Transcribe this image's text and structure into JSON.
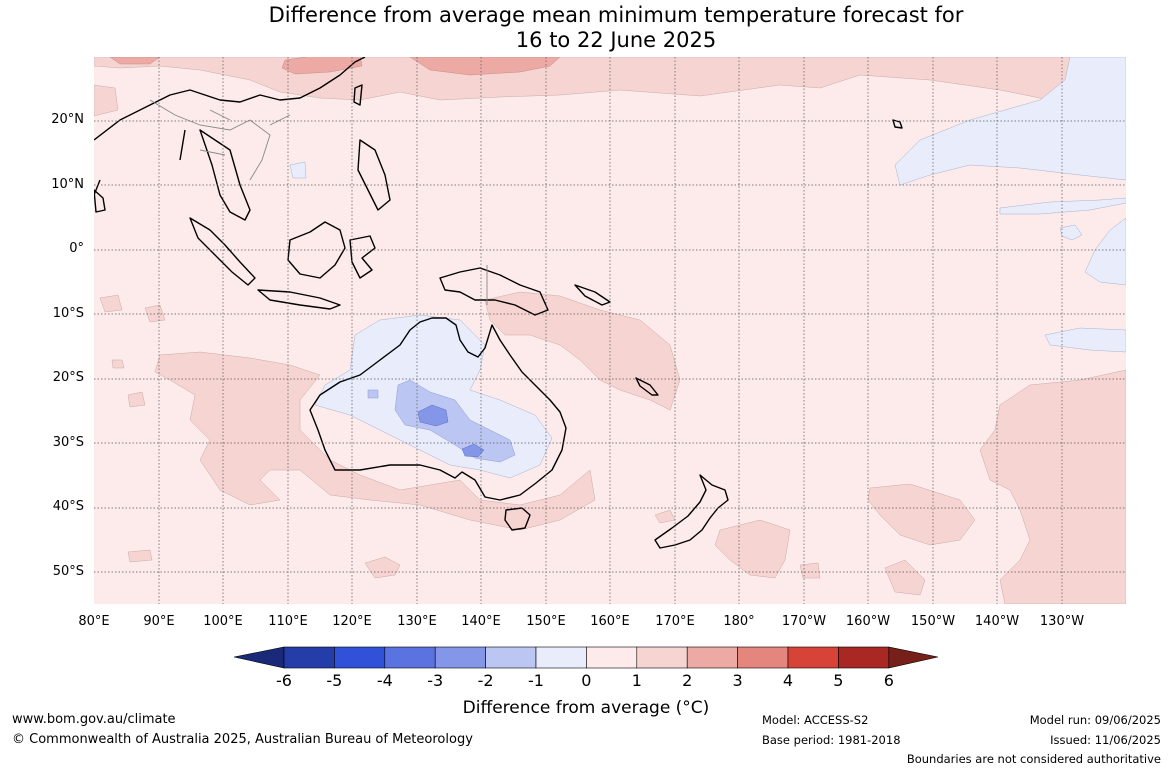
{
  "title_line1": "Difference from average mean minimum temperature forecast for",
  "title_line2": "16 to 22 June 2025",
  "lat_labels": [
    "20°N",
    "10°N",
    "0°",
    "10°S",
    "20°S",
    "30°S",
    "40°S",
    "50°S"
  ],
  "lon_labels": [
    "80°E",
    "90°E",
    "100°E",
    "110°E",
    "120°E",
    "130°E",
    "140°E",
    "150°E",
    "160°E",
    "170°E",
    "180°",
    "170°W",
    "160°W",
    "150°W",
    "140°W",
    "130°W"
  ],
  "colorbar": {
    "ticks": [
      "-6",
      "-5",
      "-4",
      "-3",
      "-2",
      "-1",
      "0",
      "1",
      "2",
      "3",
      "4",
      "5",
      "6"
    ],
    "colors": [
      "#1b2a78",
      "#253da8",
      "#3152d8",
      "#5a73e0",
      "#8496e8",
      "#bcc6f3",
      "#e8ecfb",
      "#fcebea",
      "#f6d4d2",
      "#eda9a4",
      "#e4857e",
      "#d84338",
      "#a92823",
      "#772019"
    ],
    "label": "Difference from average (°C)"
  },
  "footer": {
    "website": "www.bom.gov.au/climate",
    "copyright": "© Commonwealth of Australia 2025, Australian Bureau of Meteorology",
    "model": "Model: ACCESS-S2",
    "base_period": "Base period: 1981-2018",
    "model_run": "Model run: 09/06/2025",
    "issued": "Issued: 11/06/2025",
    "disclaimer": "Boundaries are not considered authoritative"
  }
}
